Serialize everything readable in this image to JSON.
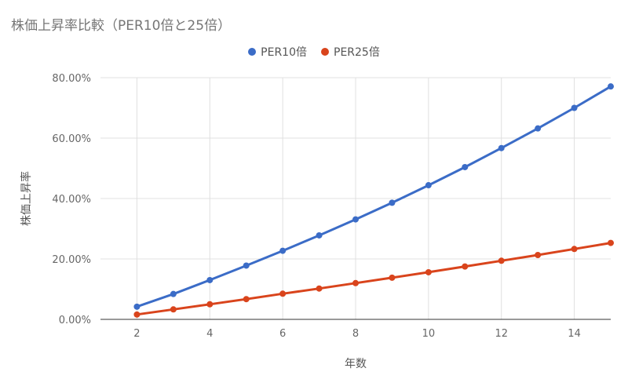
{
  "chart_data": {
    "type": "line",
    "title": "株価上昇率比較（PER10倍と25倍）",
    "xlabel": "年数",
    "ylabel": "株価上昇率",
    "x": [
      2,
      3,
      4,
      5,
      6,
      7,
      8,
      9,
      10,
      11,
      12,
      13,
      14,
      15
    ],
    "xlim": [
      1,
      15
    ],
    "ylim": [
      0,
      80
    ],
    "x_ticks": [
      "2",
      "4",
      "6",
      "8",
      "10",
      "12",
      "14"
    ],
    "y_ticks": [
      "0.00%",
      "20.00%",
      "40.00%",
      "60.00%",
      "80.00%"
    ],
    "grid": true,
    "legend_position": "top",
    "series": [
      {
        "name": "PER10倍",
        "color": "#3b6cc7",
        "values": [
          4.2,
          8.4,
          13.0,
          17.8,
          22.7,
          27.8,
          33.1,
          38.6,
          44.4,
          50.4,
          56.7,
          63.2,
          70.0,
          77.1
        ]
      },
      {
        "name": "PER25倍",
        "color": "#d9441c",
        "values": [
          1.6,
          3.3,
          5.0,
          6.7,
          8.5,
          10.2,
          12.0,
          13.8,
          15.6,
          17.5,
          19.4,
          21.3,
          23.3,
          25.3
        ]
      }
    ]
  }
}
